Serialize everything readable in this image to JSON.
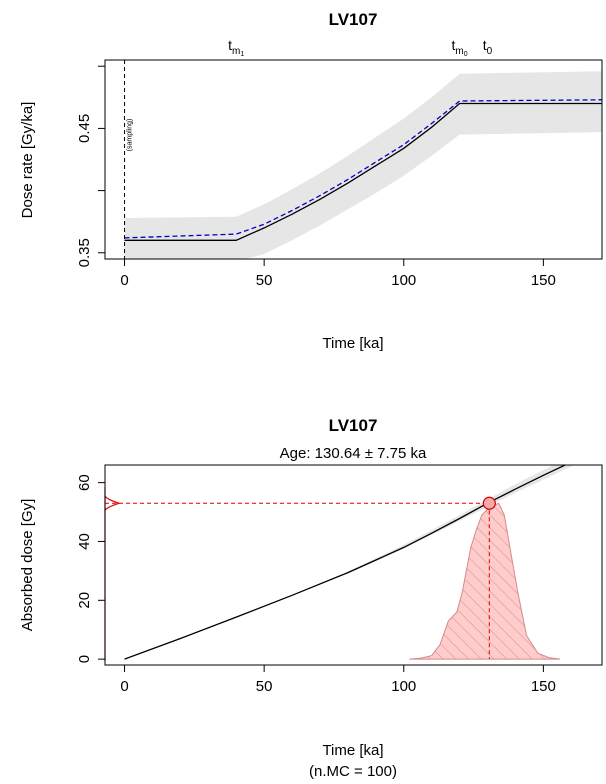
{
  "chart_data": [
    {
      "type": "line",
      "title": "LV107",
      "xlabel": "Time [ka]",
      "ylabel": "Dose rate [Gy/ka]",
      "xlim": [
        -7,
        171
      ],
      "ylim": [
        0.345,
        0.505
      ],
      "xticks": [
        "0",
        "50",
        "100",
        "150"
      ],
      "xtick_values": [
        0,
        50,
        100,
        150
      ],
      "yticks": [
        "0.35",
        "0.45"
      ],
      "ytick_values": [
        0.35,
        0.45
      ],
      "yticks_unlabeled": [
        0.4,
        0.5
      ],
      "top_markers": [
        {
          "label": "t",
          "sub": "m1",
          "x": 40
        },
        {
          "label": "t",
          "sub": "m0",
          "x": 120
        },
        {
          "label": "t",
          "sub": "0",
          "x": 130
        }
      ],
      "sampling_label": "(sampling)",
      "sampling_x": 0,
      "series": [
        {
          "x": [
            0,
            40,
            50,
            60,
            70,
            80,
            90,
            100,
            110,
            120,
            171
          ],
          "values": [
            0.36,
            0.36,
            0.37,
            0.381,
            0.393,
            0.406,
            0.42,
            0.434,
            0.451,
            0.47,
            0.47
          ],
          "color": "#000000"
        },
        {
          "x": [
            0,
            40,
            50,
            60,
            70,
            80,
            90,
            100,
            110,
            120,
            171
          ],
          "values": [
            0.362,
            0.365,
            0.373,
            0.384,
            0.396,
            0.409,
            0.423,
            0.437,
            0.454,
            0.472,
            0.473
          ],
          "color": "#0000cc"
        }
      ],
      "band": {
        "x": [
          0,
          40,
          50,
          60,
          70,
          80,
          90,
          100,
          110,
          120,
          171
        ],
        "lower": [
          0.343,
          0.343,
          0.349,
          0.36,
          0.372,
          0.385,
          0.398,
          0.412,
          0.428,
          0.445,
          0.447
        ],
        "upper": [
          0.378,
          0.379,
          0.389,
          0.401,
          0.414,
          0.428,
          0.443,
          0.458,
          0.475,
          0.494,
          0.496
        ],
        "color": "#e6e6e6"
      }
    },
    {
      "type": "line",
      "title": "LV107",
      "subtitle": "Age: 130.64 ± 7.75 ka",
      "xlabel": "Time [ka]",
      "xlabel2": "(n.MC = 100)",
      "ylabel": "Absorbed dose [Gy]",
      "xlim": [
        -7,
        171
      ],
      "ylim": [
        -2,
        66
      ],
      "xticks": [
        "0",
        "50",
        "100",
        "150"
      ],
      "xtick_values": [
        0,
        50,
        100,
        150
      ],
      "yticks": [
        "0",
        "20",
        "40",
        "60"
      ],
      "ytick_values": [
        0,
        20,
        40,
        60
      ],
      "age": 130.64,
      "dose": 53,
      "series": [
        {
          "x": [
            0,
            20,
            40,
            60,
            80,
            100,
            110,
            120,
            130,
            140,
            150,
            160
          ],
          "values": [
            0,
            7,
            14.3,
            21.7,
            29.4,
            38.0,
            42.8,
            47.8,
            53.0,
            57.8,
            62.5,
            67.0
          ],
          "color": "#000000"
        }
      ],
      "band": {
        "x": [
          80,
          100,
          120,
          140,
          160,
          171
        ],
        "lower": [
          29.0,
          37.5,
          47.0,
          56.5,
          65.5,
          70.0
        ],
        "upper": [
          29.8,
          38.8,
          49.0,
          59.5,
          69.0,
          73.0
        ],
        "color": "#e6e6e6"
      },
      "density": {
        "x": [
          102,
          106,
          110,
          113,
          116,
          119,
          121,
          124,
          126,
          128,
          130,
          132,
          134,
          136,
          138,
          141,
          144,
          148,
          152,
          156
        ],
        "values": [
          0,
          0.3,
          1.2,
          5,
          13,
          16,
          23,
          38,
          44,
          49,
          51,
          52,
          53,
          49,
          38,
          22,
          8,
          2,
          0.5,
          0
        ],
        "fill": "#ffcccc",
        "stroke": "#d48a8a",
        "hatch": "#d48a8a"
      },
      "left_density_color": "#dd0000",
      "dashed_color": "#dd0000",
      "marker_fill": "#f4aaaa",
      "marker_stroke": "#cc0000"
    }
  ]
}
